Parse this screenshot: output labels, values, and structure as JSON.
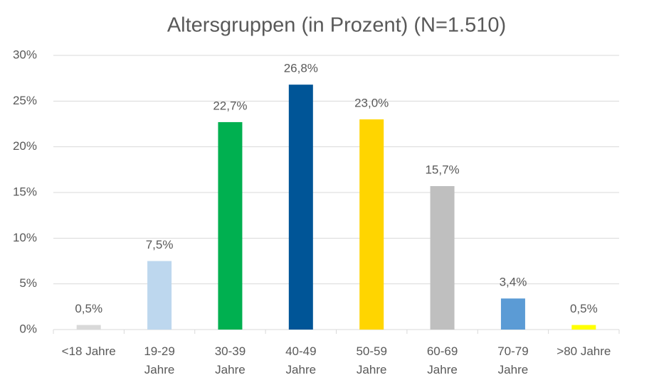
{
  "chart_data": {
    "type": "bar",
    "title": "Altersgruppen (in Prozent) (N=1.510)",
    "categories": [
      "<18 Jahre",
      "19-29\nJahre",
      "30-39\nJahre",
      "40-49\nJahre",
      "50-59\nJahre",
      "60-69\nJahre",
      "70-79\nJahre",
      ">80 Jahre"
    ],
    "values": [
      0.5,
      7.5,
      22.7,
      26.8,
      23.0,
      15.7,
      3.4,
      0.5
    ],
    "value_labels": [
      "0,5%",
      "7,5%",
      "22,7%",
      "26,8%",
      "23,0%",
      "15,7%",
      "3,4%",
      "0,5%"
    ],
    "colors": [
      "#d9d9d9",
      "#bdd7ee",
      "#00b050",
      "#005597",
      "#ffd500",
      "#bfbfbf",
      "#5b9bd5",
      "#ffff00"
    ],
    "ylim": [
      0,
      30
    ],
    "yticks": [
      {
        "value": 0,
        "label": "0%"
      },
      {
        "value": 5,
        "label": "5%"
      },
      {
        "value": 10,
        "label": "10%"
      },
      {
        "value": 15,
        "label": "15%"
      },
      {
        "value": 20,
        "label": "20%"
      },
      {
        "value": 25,
        "label": "25%"
      },
      {
        "value": 30,
        "label": "30%"
      }
    ],
    "grid": true
  }
}
